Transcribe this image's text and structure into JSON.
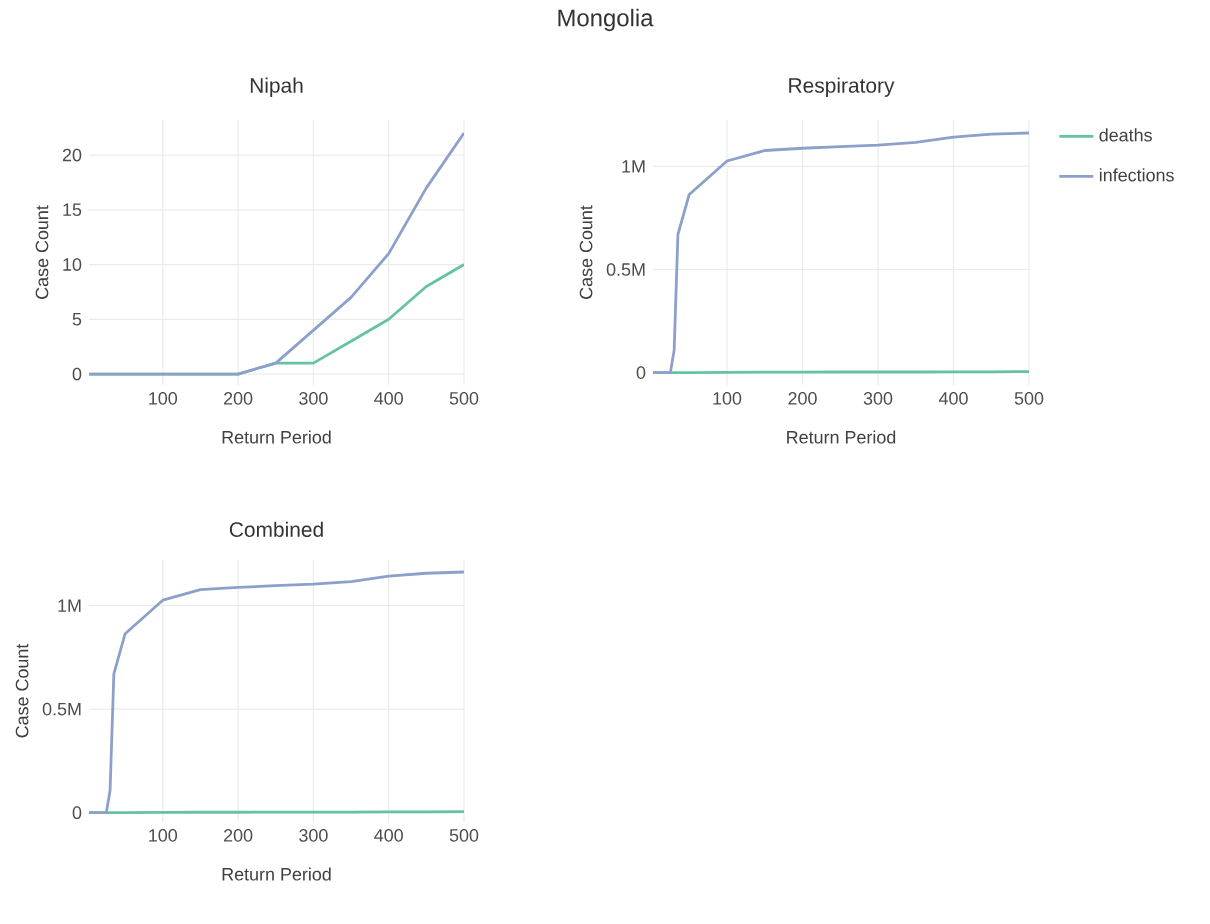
{
  "chart_data": [
    {
      "type": "line",
      "title": "Nipah",
      "xlabel": "Return Period",
      "ylabel": "Case Count",
      "annotations": [
        "Mongolia"
      ],
      "x": [
        2,
        5,
        10,
        25,
        50,
        100,
        150,
        200,
        250,
        300,
        350,
        400,
        450,
        500
      ],
      "series": [
        {
          "color": "#66c2a5",
          "values": [
            0,
            0,
            0,
            0,
            0,
            0,
            0,
            0,
            1,
            1,
            3,
            5,
            8,
            10
          ]
        },
        {
          "color": "#8da0cb",
          "values": [
            0,
            0,
            0,
            0,
            0,
            0,
            0,
            0,
            1,
            4,
            7,
            11,
            17,
            22
          ]
        }
      ],
      "xlim": [
        2,
        500
      ],
      "ylim": [
        -1,
        23.2
      ],
      "xticks": [
        100,
        200,
        300,
        400,
        500
      ],
      "yticks": [
        0,
        5,
        10,
        15,
        20
      ],
      "grid": true,
      "marker": "none",
      "line_style": "solid"
    },
    {
      "type": "line",
      "title": "Respiratory",
      "xlabel": "Return Period",
      "ylabel": "Case Count",
      "legend": "top right",
      "x": [
        2,
        5,
        10,
        20,
        25,
        30,
        35,
        50,
        100,
        150,
        200,
        250,
        300,
        350,
        400,
        450,
        500
      ],
      "series": [
        {
          "name": "deaths",
          "color": "#66c2a5",
          "values": [
            0,
            0,
            0,
            0,
            0,
            0,
            0,
            0,
            1000,
            2000,
            2000,
            3000,
            3000,
            3000,
            4000,
            4000,
            5000
          ]
        },
        {
          "name": "infections",
          "color": "#8da0cb",
          "values": [
            0,
            0,
            0,
            0,
            0,
            108000,
            670000,
            864000,
            1026000,
            1077000,
            1088000,
            1096000,
            1103000,
            1116000,
            1142000,
            1156000,
            1162000
          ]
        }
      ],
      "xlim": [
        2,
        500
      ],
      "ylim": [
        -60000,
        1225000
      ],
      "xticks": [
        100,
        200,
        300,
        400,
        500
      ],
      "yticks": [
        {
          "value": 0,
          "label": "0"
        },
        {
          "value": 500000,
          "label": "0.5M"
        },
        {
          "value": 1000000,
          "label": "1M"
        }
      ],
      "grid": true,
      "marker": "none",
      "line_style": "solid"
    },
    {
      "type": "line",
      "title": "Combined",
      "xlabel": "Return Period",
      "ylabel": "Case Count",
      "x": [
        2,
        5,
        10,
        20,
        25,
        30,
        35,
        50,
        100,
        150,
        200,
        250,
        300,
        350,
        400,
        450,
        500
      ],
      "series": [
        {
          "color": "#66c2a5",
          "values": [
            0,
            0,
            0,
            0,
            0,
            0,
            0,
            0,
            1000,
            2000,
            2000,
            3000,
            3000,
            3000,
            4000,
            4000,
            5000
          ]
        },
        {
          "color": "#8da0cb",
          "values": [
            0,
            0,
            0,
            0,
            0,
            108000,
            670000,
            864000,
            1026000,
            1077000,
            1088000,
            1096000,
            1103000,
            1116000,
            1142000,
            1156000,
            1162000
          ]
        }
      ],
      "xlim": [
        2,
        500
      ],
      "ylim": [
        -45000,
        1220000.0
      ],
      "xticks": [
        100,
        200,
        300,
        400,
        500
      ],
      "yticks": [
        {
          "value": 0,
          "label": "0"
        },
        {
          "value": 500000,
          "label": "0.5M"
        },
        {
          "value": 1000000,
          "label": "1M"
        }
      ],
      "grid": true,
      "marker": "none",
      "line_style": "solid"
    }
  ]
}
